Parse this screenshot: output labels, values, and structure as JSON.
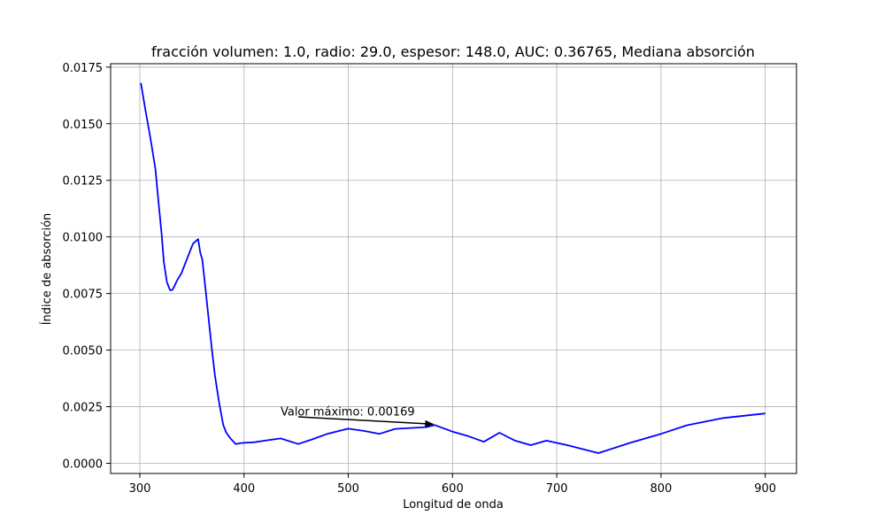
{
  "chart_data": {
    "type": "line",
    "title": "fracción volumen: 1.0, radio: 29.0, espesor: 148.0, AUC: 0.36765, Mediana absorción",
    "xlabel": "Longitud de onda",
    "ylabel": "Índice de absorción",
    "xlim": [
      272,
      930
    ],
    "ylim": [
      -0.00045,
      0.01765
    ],
    "x_ticks": [
      300,
      400,
      500,
      600,
      700,
      800,
      900
    ],
    "x_tick_labels": [
      "300",
      "400",
      "500",
      "600",
      "700",
      "800",
      "900"
    ],
    "y_ticks": [
      0.0,
      0.0025,
      0.005,
      0.0075,
      0.01,
      0.0125,
      0.015,
      0.0175
    ],
    "y_tick_labels": [
      "0.0000",
      "0.0025",
      "0.0050",
      "0.0075",
      "0.0100",
      "0.0125",
      "0.0150",
      "0.0175"
    ],
    "grid": true,
    "line_color": "#0000ff",
    "series": [
      {
        "x": [
          301,
          305,
          310,
          315,
          318,
          321,
          323,
          326,
          329,
          331,
          333,
          336,
          340,
          345,
          351,
          356,
          358,
          360,
          363,
          366,
          369,
          372,
          376,
          380,
          383,
          387,
          392,
          398,
          410,
          420,
          435,
          452,
          465,
          480,
          500,
          515,
          530,
          545,
          560,
          575,
          583,
          600,
          615,
          630,
          645,
          660,
          675,
          690,
          710,
          740,
          770,
          800,
          825,
          860,
          900
        ],
        "y": [
          0.0168,
          0.0157,
          0.0144,
          0.013,
          0.0115,
          0.0101,
          0.0089,
          0.008,
          0.00765,
          0.00765,
          0.0078,
          0.0081,
          0.0084,
          0.009,
          0.0097,
          0.0099,
          0.0093,
          0.009,
          0.0077,
          0.0064,
          0.0051,
          0.0039,
          0.0027,
          0.0017,
          0.00135,
          0.0011,
          0.00085,
          0.0009,
          0.00093,
          0.001,
          0.0011,
          0.00085,
          0.00105,
          0.0013,
          0.00153,
          0.00143,
          0.0013,
          0.00152,
          0.00156,
          0.0016,
          0.00169,
          0.0014,
          0.0012,
          0.00095,
          0.00135,
          0.001,
          0.0008,
          0.001,
          0.0008,
          0.00045,
          0.0009,
          0.0013,
          0.00168,
          0.002,
          0.0022
        ]
      }
    ],
    "annotation": {
      "text": "Valor máximo: 0.00169",
      "text_x": 435,
      "text_y": 0.0023,
      "arrow_from": [
        452,
        0.00205
      ],
      "arrow_to": [
        583,
        0.00169
      ]
    }
  }
}
